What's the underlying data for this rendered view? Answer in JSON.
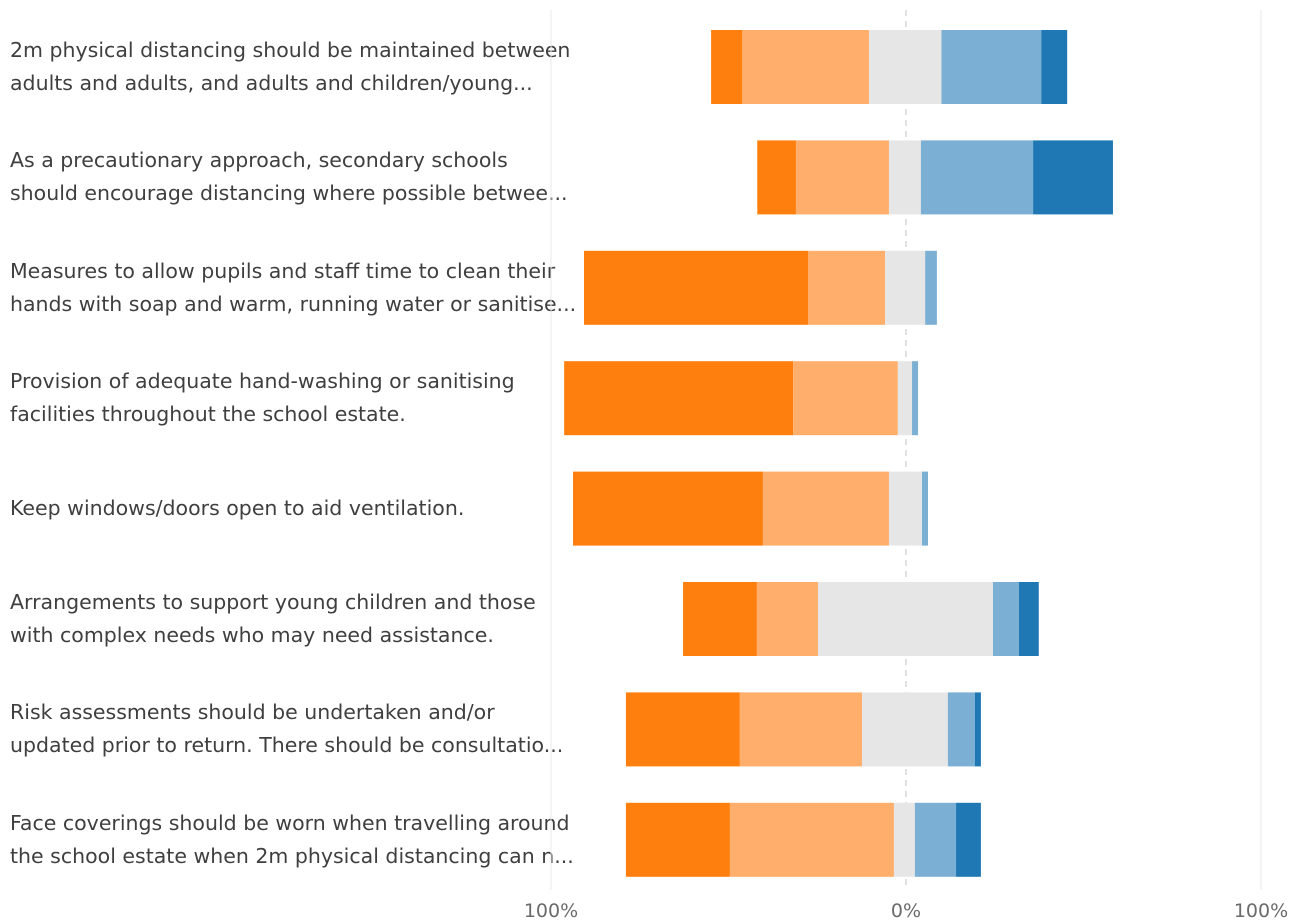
{
  "chart_data": {
    "type": "bar",
    "orientation": "horizontal",
    "stacking": "diverging",
    "xlim": [
      -100,
      100
    ],
    "x_tick_labels": [
      "100%",
      "0%",
      "100%"
    ],
    "segment_colors": [
      "#ff7f0e",
      "#ffae6b",
      "#e6e6e6",
      "#7bafd4",
      "#1f77b4"
    ],
    "categories": [
      {
        "label_lines": [
          "2m physical distancing should be maintained between",
          "adults and adults, and adults and children/young..."
        ],
        "segments": [
          -54.9,
          -46.1,
          -10.4,
          10,
          38.1,
          45.4
        ]
      },
      {
        "label_lines": [
          "As a precautionary approach, secondary schools",
          "should encourage distancing where possible betwee..."
        ],
        "segments": [
          -41.9,
          -31.0,
          -4.8,
          4.2,
          35.8,
          58.3
        ]
      },
      {
        "label_lines": [
          "Measures to allow pupils and staff time to clean their",
          "hands with soap and warm, running water or sanitise..."
        ],
        "segments": [
          -90.7,
          -27.6,
          -5.9,
          5.4,
          8.7
        ]
      },
      {
        "label_lines": [
          "Provision of adequate hand-washing or sanitising",
          "facilities throughout the school estate."
        ],
        "segments": [
          -96.3,
          -31.8,
          -2.3,
          1.7,
          3.4
        ]
      },
      {
        "label_lines": [
          "Keep windows/doors open to aid ventilation."
        ],
        "segments": [
          -93.8,
          -40.3,
          -4.8,
          4.5,
          6.2
        ]
      },
      {
        "label_lines": [
          "Arrangements to support young children and those",
          "with complex needs who may need assistance."
        ],
        "segments": [
          -62.8,
          -42.0,
          -24.8,
          24.5,
          31.8,
          37.4
        ]
      },
      {
        "label_lines": [
          "Risk assessments should be undertaken and/or",
          "updated prior to return. There should be consultatio..."
        ],
        "segments": [
          -78.9,
          -46.8,
          -12.4,
          11.8,
          19.4,
          21.1
        ]
      },
      {
        "label_lines": [
          "Face coverings should be worn when travelling around",
          "the school estate when 2m physical distancing can n..."
        ],
        "segments": [
          -78.9,
          -49.6,
          -3.4,
          2.5,
          14.1,
          21.1
        ]
      }
    ]
  }
}
